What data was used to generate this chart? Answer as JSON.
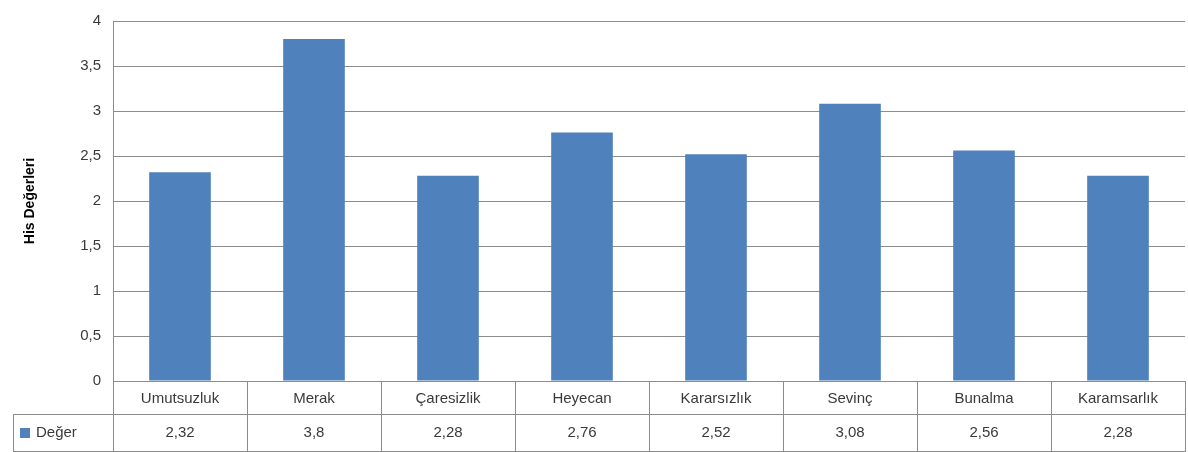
{
  "chart_data": {
    "type": "bar",
    "ylabel": "His Değerleri",
    "categories": [
      "Umutsuzluk",
      "Merak",
      "Çaresizlik",
      "Heyecan",
      "Kararsızlık",
      "Sevinç",
      "Bunalma",
      "Karamsarlık"
    ],
    "series": [
      {
        "name": "Değer",
        "color": "#4f81bd",
        "values": [
          2.32,
          3.8,
          2.28,
          2.76,
          2.52,
          3.08,
          2.56,
          2.28
        ],
        "value_labels": [
          "2,32",
          "3,8",
          "2,28",
          "2,76",
          "2,52",
          "3,08",
          "2,56",
          "2,28"
        ]
      }
    ],
    "ylim": [
      0,
      4
    ],
    "yticks": [
      0,
      {
        "value": 0.5,
        "label": "0,5"
      },
      1,
      {
        "value": 1.5,
        "label": "1,5"
      },
      2,
      {
        "value": 2.5,
        "label": "2,5"
      },
      3,
      {
        "value": 3.5,
        "label": "3,5"
      },
      4
    ],
    "grid": "y",
    "legend": "bottom"
  }
}
